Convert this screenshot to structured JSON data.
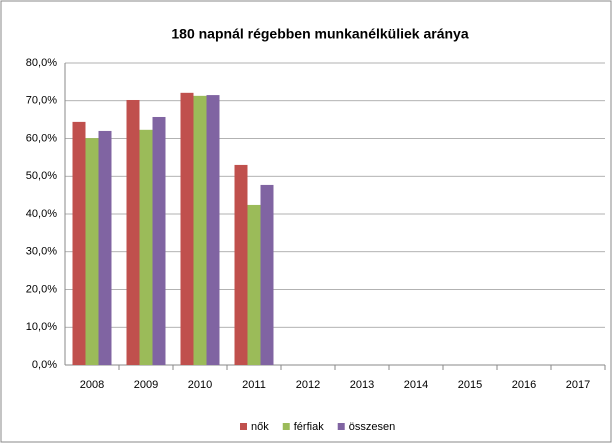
{
  "chart_data": {
    "type": "bar",
    "title": "180 napnál régebben munkanélküliek aránya",
    "categories": [
      "2008",
      "2009",
      "2010",
      "2011",
      "2012",
      "2013",
      "2014",
      "2015",
      "2016",
      "2017"
    ],
    "series": [
      {
        "name": "nők",
        "color": "#c0504d",
        "values": [
          64.4,
          70.2,
          72.1,
          53.0,
          null,
          null,
          null,
          null,
          null,
          null
        ]
      },
      {
        "name": "férfiak",
        "color": "#9bbb59",
        "values": [
          60.1,
          62.3,
          71.3,
          42.4,
          null,
          null,
          null,
          null,
          null,
          null
        ]
      },
      {
        "name": "összesen",
        "color": "#8064a2",
        "values": [
          62.0,
          65.7,
          71.5,
          47.7,
          null,
          null,
          null,
          null,
          null,
          null
        ]
      }
    ],
    "ylim": [
      0,
      80
    ],
    "yticks": [
      {
        "value": 0,
        "label": "0,0%"
      },
      {
        "value": 10,
        "label": "10,0%"
      },
      {
        "value": 20,
        "label": "20,0%"
      },
      {
        "value": 30,
        "label": "30,0%"
      },
      {
        "value": 40,
        "label": "40,0%"
      },
      {
        "value": 50,
        "label": "50,0%"
      },
      {
        "value": 60,
        "label": "60,0%"
      },
      {
        "value": 70,
        "label": "70,0%"
      },
      {
        "value": 80,
        "label": "80,0%"
      }
    ],
    "grid": true,
    "legend": "bottom"
  }
}
